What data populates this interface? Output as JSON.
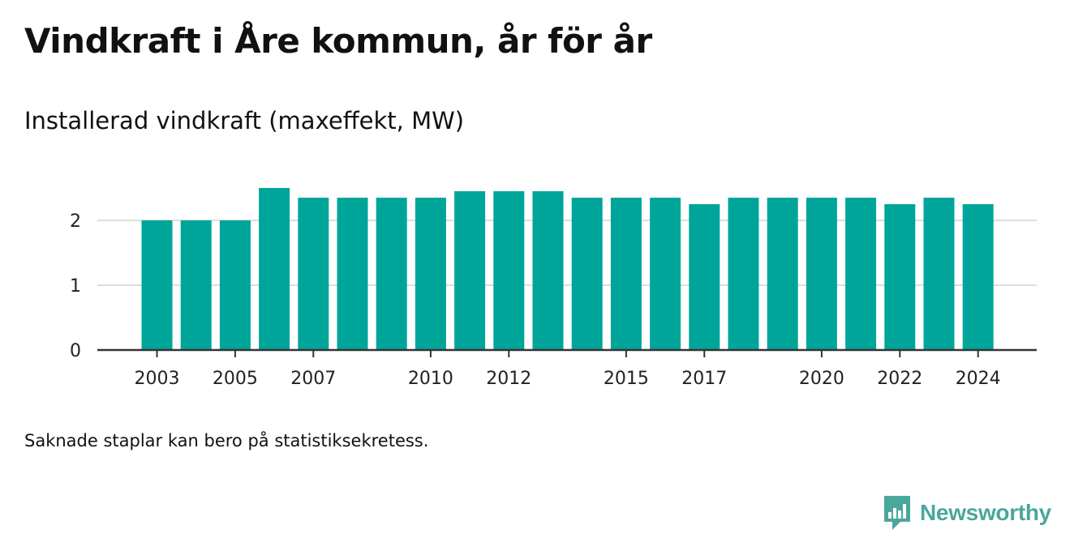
{
  "title": "Vindkraft i Åre kommun, år för år",
  "subtitle": "Installerad vindkraft (maxeffekt, MW)",
  "footnote": "Saknade staplar kan bero på statistiksekretess.",
  "brand": {
    "name": "Newsworthy",
    "icon": "newsworthy-logo-icon",
    "color": "#4aa79b"
  },
  "chart_data": {
    "type": "bar",
    "categories": [
      2003,
      2004,
      2005,
      2006,
      2007,
      2008,
      2009,
      2010,
      2011,
      2012,
      2013,
      2014,
      2015,
      2016,
      2017,
      2018,
      2019,
      2020,
      2021,
      2022,
      2023,
      2024
    ],
    "values": [
      2.0,
      2.0,
      2.0,
      2.5,
      2.35,
      2.35,
      2.35,
      2.35,
      2.45,
      2.45,
      2.45,
      2.35,
      2.35,
      2.35,
      2.25,
      2.35,
      2.35,
      2.35,
      2.35,
      2.25,
      2.35,
      2.25
    ],
    "x_tick_labels": [
      "2003",
      "2005",
      "2007",
      "2010",
      "2012",
      "2015",
      "2017",
      "2020",
      "2022",
      "2024"
    ],
    "y_ticks": [
      0,
      1,
      2
    ],
    "ylim": [
      0,
      2.7
    ],
    "bar_color": "#00a59a",
    "grid": true,
    "xlabel": "",
    "ylabel": ""
  }
}
